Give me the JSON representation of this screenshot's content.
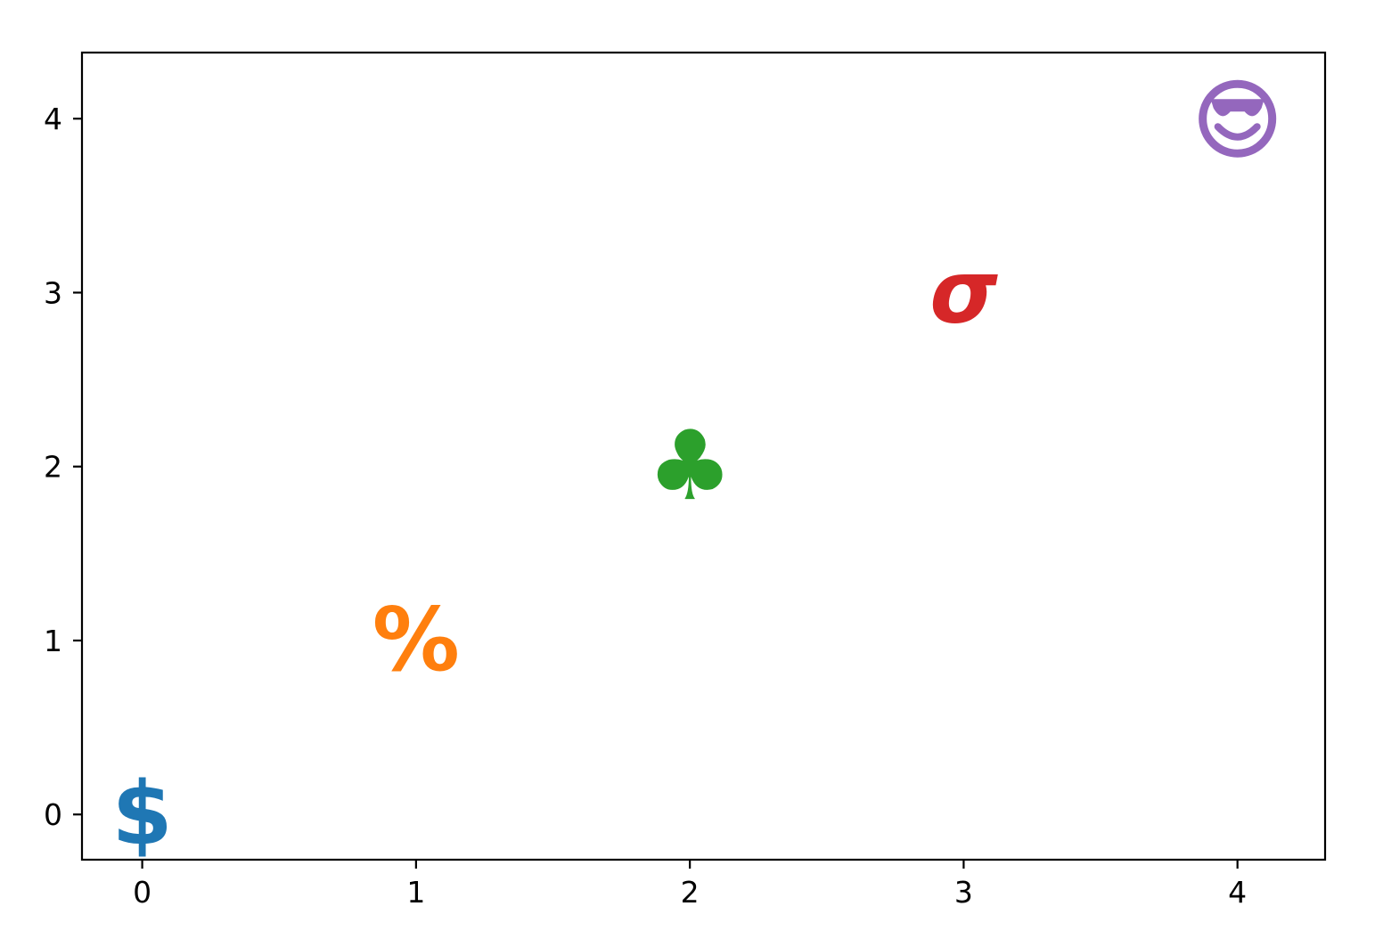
{
  "chart_data": {
    "type": "scatter",
    "title": "",
    "xlabel": "",
    "ylabel": "",
    "xlim": [
      -0.22,
      4.32
    ],
    "ylim": [
      -0.26,
      4.38
    ],
    "grid": false,
    "xticks": [
      0,
      1,
      2,
      3,
      4
    ],
    "yticks": [
      0,
      1,
      2,
      3,
      4
    ],
    "xtick_labels": [
      "0",
      "1",
      "2",
      "3",
      "4"
    ],
    "ytick_labels": [
      "0",
      "1",
      "2",
      "3",
      "4"
    ],
    "points": [
      {
        "x": 0,
        "y": 0,
        "marker": "$",
        "marker_name": "dollar-sign",
        "color": "#1f77b4"
      },
      {
        "x": 1,
        "y": 1,
        "marker": "%",
        "marker_name": "percent-sign",
        "color": "#ff7f0e"
      },
      {
        "x": 2,
        "y": 2,
        "marker": "♣",
        "marker_name": "club-suit",
        "color": "#2ca02c"
      },
      {
        "x": 3,
        "y": 3,
        "marker": "σ",
        "marker_name": "greek-sigma",
        "color": "#d62728"
      },
      {
        "x": 4,
        "y": 4,
        "marker": "😎",
        "marker_name": "smiling-face-with-sunglasses",
        "color": "#9467bd"
      }
    ]
  }
}
